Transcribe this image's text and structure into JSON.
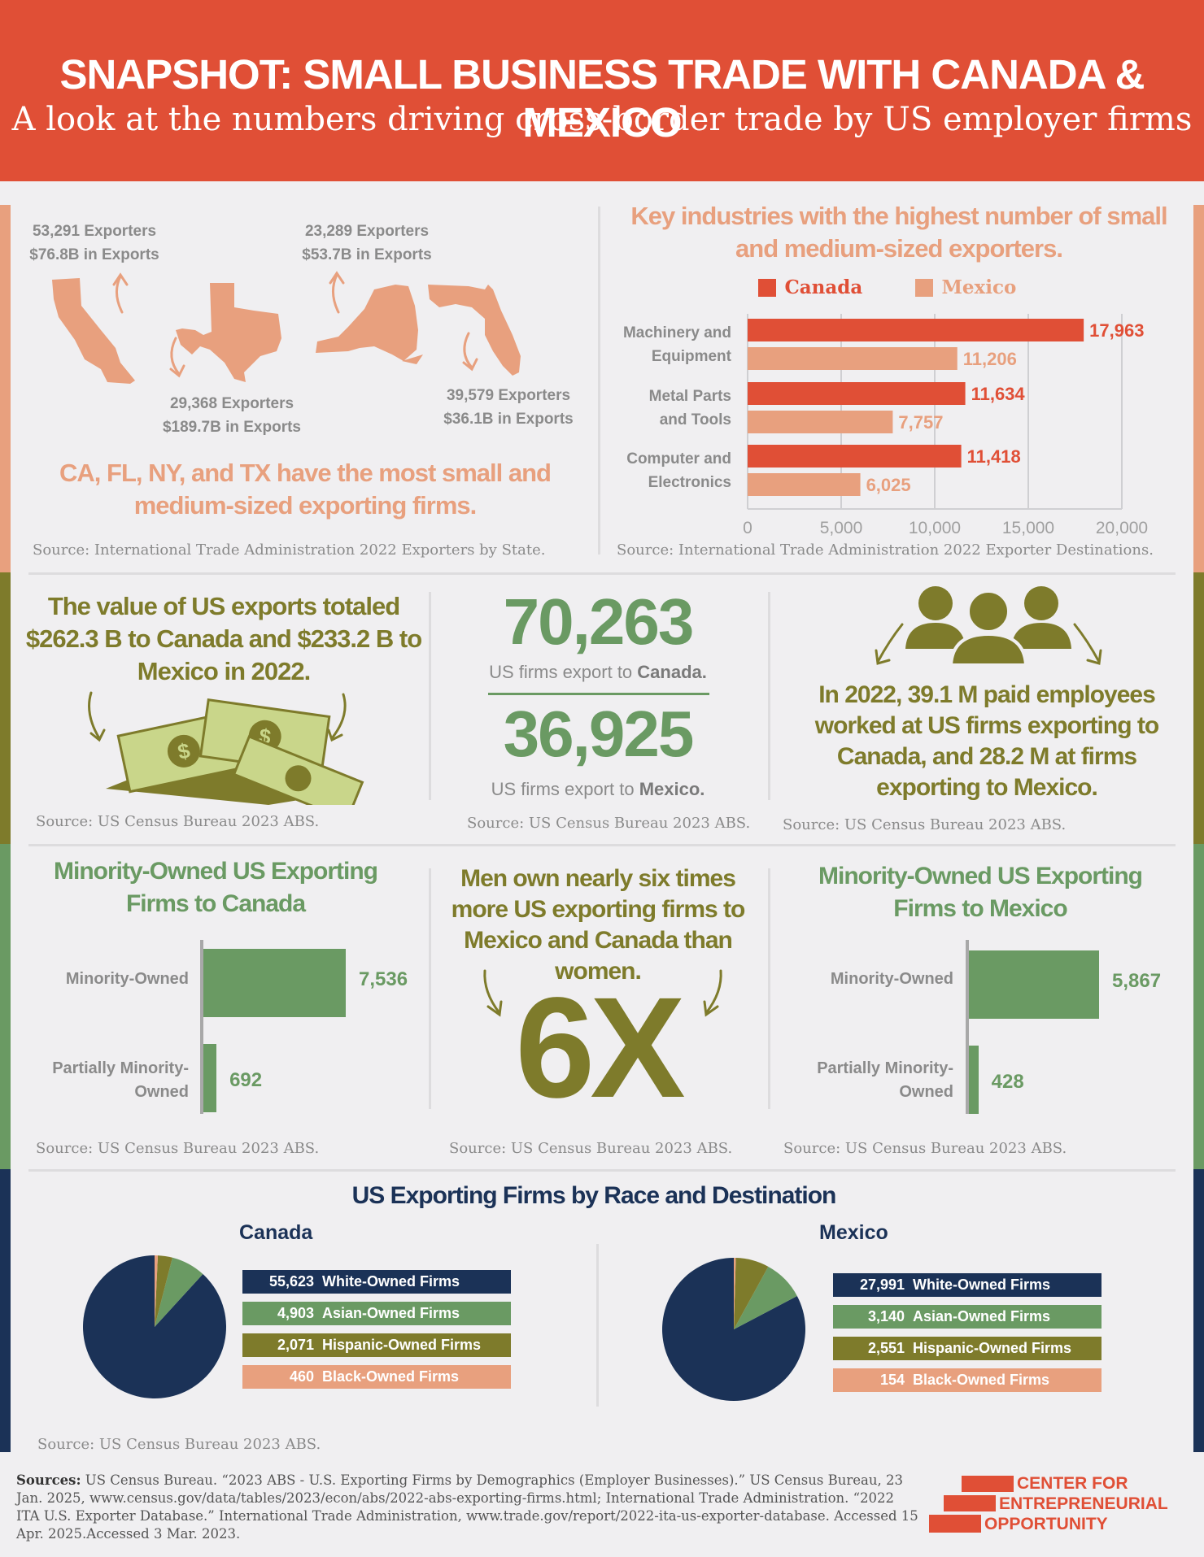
{
  "header": {
    "title": "SNAPSHOT: SMALL BUSINESS TRADE WITH CANADA & MEXICO",
    "subtitle": "A look at the numbers driving cross-border trade by US employer firms"
  },
  "states": {
    "ca": {
      "exporters": "53,291 Exporters",
      "exports": "$76.8B in Exports"
    },
    "tx": {
      "exporters": "29,368 Exporters",
      "exports": "$189.7B in Exports"
    },
    "ny": {
      "exporters": "23,289 Exporters",
      "exports": "$53.7B in Exports"
    },
    "fl": {
      "exporters": "39,579 Exporters",
      "exports": "$36.1B in Exports"
    },
    "headline": "CA, FL, NY, and TX have the most small and medium-sized exporting firms.",
    "source": "Source: International Trade Administration 2022 Exporters by State."
  },
  "industries": {
    "title": "Key industries with the highest number of small and medium-sized exporters.",
    "source": "Source: International Trade Administration 2022 Exporter Destinations."
  },
  "exports_value": {
    "text": "The value of US exports totaled $262.3 B to Canada and $233.2 B to Mexico in 2022.",
    "source": "Source: US Census Bureau 2023 ABS."
  },
  "firm_counts": {
    "canada_number": "70,263",
    "canada_pre": "US firms export to ",
    "canada_dest": "Canada.",
    "mexico_number": "36,925",
    "mexico_pre": "US firms export to ",
    "mexico_dest": "Mexico.",
    "source": "Source: US Census Bureau 2023 ABS."
  },
  "employees": {
    "text": "In 2022, 39.1 M paid employees worked at US firms exporting to Canada, and 28.2 M at firms exporting to Mexico.",
    "source": "Source: US Census Bureau 2023 ABS."
  },
  "minority_canada": {
    "title": "Minority-Owned US Exporting Firms to Canada",
    "source": "Source: US Census Bureau 2023 ABS."
  },
  "gender": {
    "text": "Men own nearly six times more US exporting firms to Mexico and Canada than women.",
    "big": "6X",
    "source": "Source: US Census Bureau 2023 ABS."
  },
  "minority_mexico": {
    "title": "Minority-Owned US Exporting Firms to Mexico",
    "source": "Source: US Census Bureau 2023 ABS."
  },
  "race": {
    "title": "US Exporting Firms by Race and Destination",
    "source": "Source: US Census Bureau 2023 ABS."
  },
  "footer": {
    "sources_label": "Sources:",
    "sources_text": " US Census Bureau. “2023 ABS - U.S. Exporting Firms by Demographics (Employer Businesses).” US Census Bureau, 23 Jan. 2025, www.census.gov/data/tables/2023/econ/abs/2022-abs-exporting-firms.html; International Trade Administration. “2022 ITA U.S. Exporter Database.” International Trade Administration, www.trade.gov/report/2022-ita-us-exporter-database. Accessed 15 Apr. 2025.Accessed 3 Mar. 2023.",
    "logo_line1": "CENTER FOR",
    "logo_line2": "ENTREPRENEURIAL",
    "logo_line3": "OPPORTUNITY"
  },
  "colors": {
    "header": "#e04f36",
    "canada": "#e04f36",
    "mexico": "#e8a07e",
    "olive": "#7e7b2b",
    "green": "#6a9a63",
    "navy": "#1b3257"
  },
  "chart_data": [
    {
      "type": "bar",
      "orientation": "horizontal",
      "categories": [
        "Machinery and Equipment",
        "Metal Parts and Tools",
        "Computer and Electronics"
      ],
      "series": [
        {
          "name": "Canada",
          "values": [
            17963,
            11634,
            11418
          ],
          "labels": [
            "17,963",
            "11,634",
            "11,418"
          ],
          "color": "#e04f36"
        },
        {
          "name": "Mexico",
          "values": [
            11206,
            7757,
            6025
          ],
          "labels": [
            "11,206",
            "7,757",
            "6,025"
          ],
          "color": "#e8a07e"
        }
      ],
      "xlim": [
        0,
        20000
      ],
      "xticks": [
        "0",
        "5,000",
        "10,000",
        "15,000",
        "20,000"
      ],
      "grid": true,
      "legend": "top"
    },
    {
      "type": "bar",
      "orientation": "horizontal",
      "categories": [
        "Minority-Owned",
        "Partially Minority-Owned"
      ],
      "values": [
        7536,
        692
      ],
      "labels": [
        "7,536",
        "692"
      ]
    },
    {
      "type": "bar",
      "orientation": "horizontal",
      "categories": [
        "Minority-Owned",
        "Partially Minority-Owned"
      ],
      "values": [
        5867,
        428
      ],
      "labels": [
        "5,867",
        "428"
      ]
    },
    {
      "type": "pie",
      "title": "Canada",
      "slices": [
        {
          "label": "White-Owned Firms",
          "value": 55623,
          "display": "55,623",
          "color": "#1b3257"
        },
        {
          "label": "Asian-Owned Firms",
          "value": 4903,
          "display": "4,903",
          "color": "#6a9a63"
        },
        {
          "label": "Hispanic-Owned Firms",
          "value": 2071,
          "display": "2,071",
          "color": "#7e7b2b"
        },
        {
          "label": "Black-Owned Firms",
          "value": 460,
          "display": "460",
          "color": "#e8a07e"
        }
      ]
    },
    {
      "type": "pie",
      "title": "Mexico",
      "slices": [
        {
          "label": "White-Owned Firms",
          "value": 27991,
          "display": "27,991",
          "color": "#1b3257"
        },
        {
          "label": "Asian-Owned Firms",
          "value": 3140,
          "display": "3,140",
          "color": "#6a9a63"
        },
        {
          "label": "Hispanic-Owned Firms",
          "value": 2551,
          "display": "2,551",
          "color": "#7e7b2b"
        },
        {
          "label": "Black-Owned Firms",
          "value": 154,
          "display": "154",
          "color": "#e8a07e"
        }
      ]
    }
  ]
}
